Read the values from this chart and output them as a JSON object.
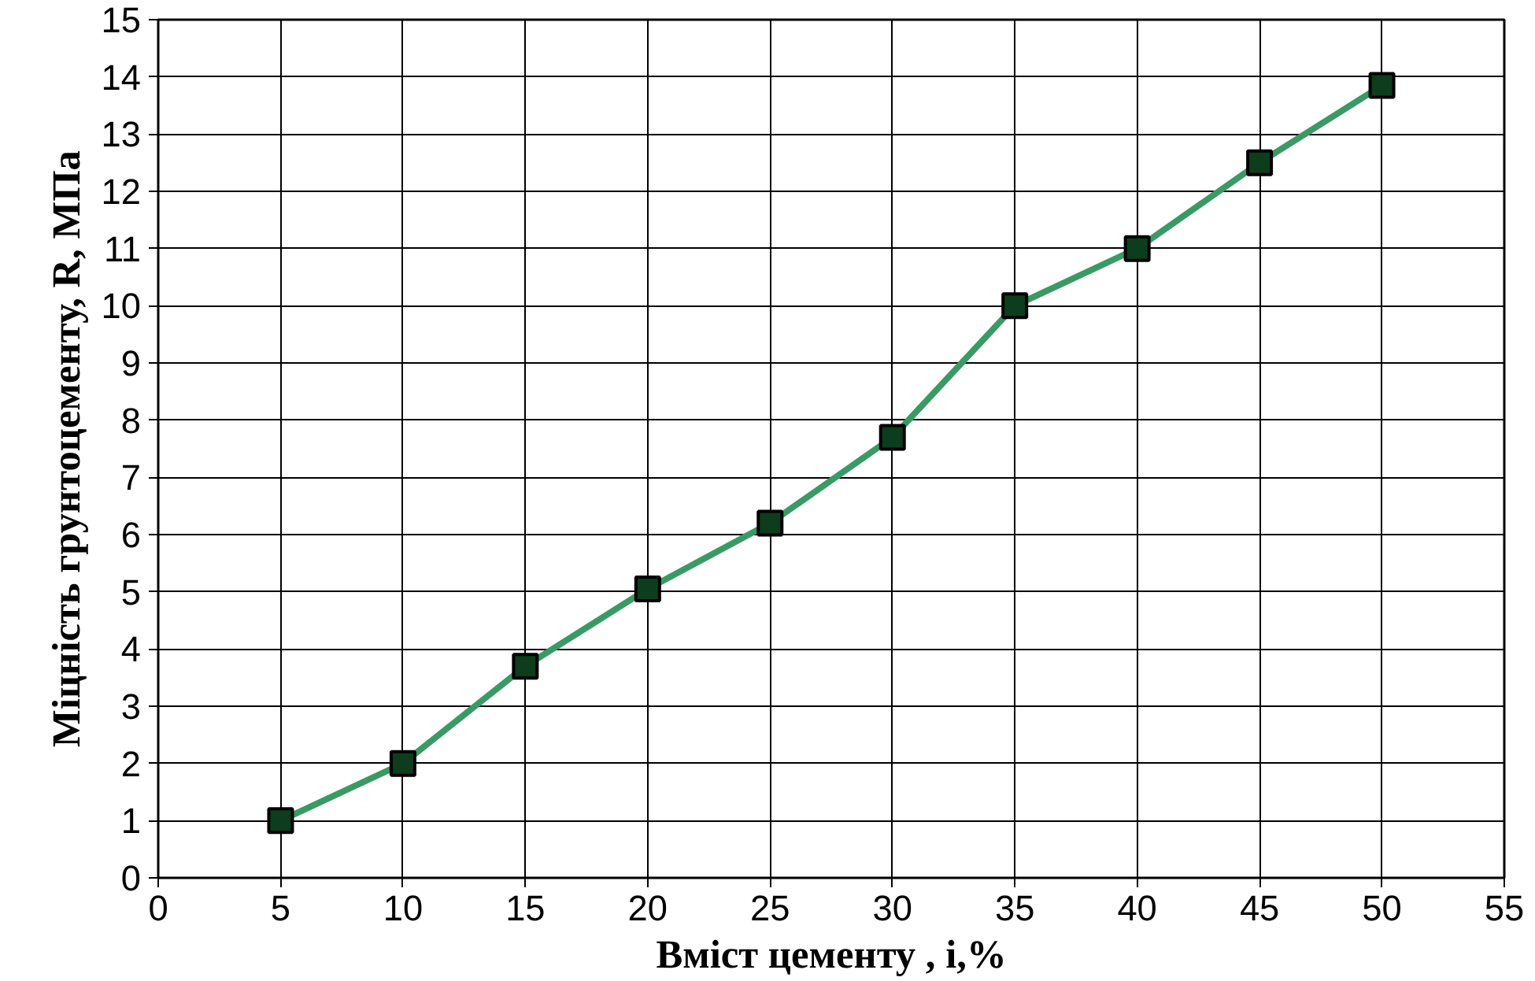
{
  "chart_data": {
    "type": "line",
    "xlabel": "Вміст цементу , і,%",
    "ylabel": "Міцність грунтоцементу, R, МПа",
    "x": [
      5,
      10,
      15,
      20,
      25,
      30,
      35,
      40,
      45,
      50
    ],
    "series": [
      {
        "color": "#3a9a66",
        "values": [
          1,
          2,
          3.7,
          5.05,
          6.2,
          7.7,
          10,
          11,
          12.5,
          13.85
        ]
      }
    ],
    "xlim": [
      0,
      55
    ],
    "xticks": [
      0,
      5,
      10,
      15,
      20,
      25,
      30,
      35,
      40,
      45,
      50,
      55
    ],
    "ylim": [
      0,
      15
    ],
    "yticks": [
      0,
      1,
      2,
      3,
      4,
      5,
      6,
      7,
      8,
      9,
      10,
      11,
      12,
      13,
      14,
      15
    ],
    "grid": true,
    "marker": "square",
    "line_style": "solid"
  }
}
